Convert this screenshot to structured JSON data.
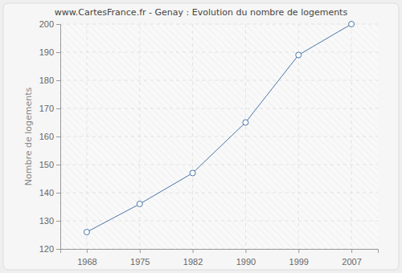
{
  "chart_data": {
    "type": "line",
    "title": "www.CartesFrance.fr - Genay : Evolution du nombre de logements",
    "y_label": "Nombre de logements",
    "categories": [
      "1968",
      "1975",
      "1982",
      "1990",
      "1999",
      "2007"
    ],
    "values": [
      126,
      136,
      147,
      165,
      189,
      200
    ],
    "color": "#4a76a8",
    "marker": "circle",
    "ylim": [
      120,
      200
    ],
    "yticks": [
      120,
      130,
      140,
      150,
      160,
      170,
      180,
      190,
      200
    ],
    "grid": true
  }
}
